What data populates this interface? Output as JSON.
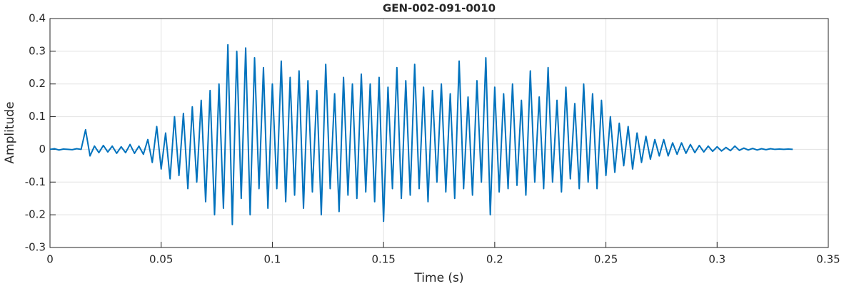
{
  "chart_data": {
    "type": "line",
    "title": "GEN-002-091-0010",
    "xlabel": "Time (s)",
    "ylabel": "Amplitude",
    "x": [
      0,
      0.002,
      0.004,
      0.006,
      0.008,
      0.01,
      0.012,
      0.014,
      0.016,
      0.018,
      0.02,
      0.022,
      0.024,
      0.026,
      0.028,
      0.03,
      0.032,
      0.034,
      0.036,
      0.038,
      0.04,
      0.042,
      0.044,
      0.046,
      0.048,
      0.05,
      0.052,
      0.054,
      0.056,
      0.058,
      0.06,
      0.062,
      0.064,
      0.066,
      0.068,
      0.07,
      0.072,
      0.074,
      0.076,
      0.078,
      0.08,
      0.082,
      0.084,
      0.086,
      0.088,
      0.09,
      0.092,
      0.094,
      0.096,
      0.098,
      0.1,
      0.102,
      0.104,
      0.106,
      0.108,
      0.11,
      0.112,
      0.114,
      0.116,
      0.118,
      0.12,
      0.122,
      0.124,
      0.126,
      0.128,
      0.13,
      0.132,
      0.134,
      0.136,
      0.138,
      0.14,
      0.142,
      0.144,
      0.146,
      0.148,
      0.15,
      0.152,
      0.154,
      0.156,
      0.158,
      0.16,
      0.162,
      0.164,
      0.166,
      0.168,
      0.17,
      0.172,
      0.174,
      0.176,
      0.178,
      0.18,
      0.182,
      0.184,
      0.186,
      0.188,
      0.19,
      0.192,
      0.194,
      0.196,
      0.198,
      0.2,
      0.202,
      0.204,
      0.206,
      0.208,
      0.21,
      0.212,
      0.214,
      0.216,
      0.218,
      0.22,
      0.222,
      0.224,
      0.226,
      0.228,
      0.23,
      0.232,
      0.234,
      0.236,
      0.238,
      0.24,
      0.242,
      0.244,
      0.246,
      0.248,
      0.25,
      0.252,
      0.254,
      0.256,
      0.258,
      0.26,
      0.262,
      0.264,
      0.266,
      0.268,
      0.27,
      0.272,
      0.274,
      0.276,
      0.278,
      0.28,
      0.282,
      0.284,
      0.286,
      0.288,
      0.29,
      0.292,
      0.294,
      0.296,
      0.298,
      0.3,
      0.302,
      0.304,
      0.306,
      0.308,
      0.31,
      0.312,
      0.314,
      0.316,
      0.318,
      0.32,
      0.322,
      0.324,
      0.326,
      0.328,
      0.33,
      0.332,
      0.334
    ],
    "series": [
      {
        "color": "#0072bd",
        "values": [
          0,
          0.002,
          -0.002,
          0.001,
          0,
          -0.001,
          0.002,
          0,
          0.06,
          -0.02,
          0.01,
          -0.01,
          0.012,
          -0.008,
          0.01,
          -0.012,
          0.008,
          -0.01,
          0.015,
          -0.012,
          0.01,
          -0.015,
          0.03,
          -0.04,
          0.07,
          -0.06,
          0.05,
          -0.09,
          0.1,
          -0.08,
          0.11,
          -0.12,
          0.13,
          -0.1,
          0.15,
          -0.16,
          0.18,
          -0.2,
          0.2,
          -0.18,
          0.32,
          -0.23,
          0.3,
          -0.15,
          0.31,
          -0.2,
          0.28,
          -0.12,
          0.25,
          -0.18,
          0.2,
          -0.12,
          0.27,
          -0.16,
          0.22,
          -0.14,
          0.24,
          -0.18,
          0.21,
          -0.13,
          0.18,
          -0.2,
          0.26,
          -0.12,
          0.17,
          -0.19,
          0.22,
          -0.14,
          0.2,
          -0.15,
          0.23,
          -0.13,
          0.2,
          -0.16,
          0.22,
          -0.22,
          0.19,
          -0.12,
          0.25,
          -0.15,
          0.21,
          -0.14,
          0.26,
          -0.12,
          0.19,
          -0.16,
          0.18,
          -0.1,
          0.2,
          -0.13,
          0.17,
          -0.15,
          0.27,
          -0.12,
          0.16,
          -0.14,
          0.21,
          -0.1,
          0.28,
          -0.2,
          0.19,
          -0.13,
          0.17,
          -0.12,
          0.2,
          -0.11,
          0.15,
          -0.14,
          0.24,
          -0.1,
          0.16,
          -0.12,
          0.25,
          -0.1,
          0.15,
          -0.13,
          0.19,
          -0.09,
          0.14,
          -0.12,
          0.2,
          -0.1,
          0.17,
          -0.12,
          0.15,
          -0.08,
          0.1,
          -0.07,
          0.08,
          -0.05,
          0.07,
          -0.06,
          0.05,
          -0.04,
          0.04,
          -0.03,
          0.03,
          -0.02,
          0.03,
          -0.02,
          0.02,
          -0.015,
          0.02,
          -0.012,
          0.015,
          -0.01,
          0.012,
          -0.008,
          0.01,
          -0.006,
          0.008,
          -0.005,
          0.006,
          -0.004,
          0.01,
          -0.003,
          0.004,
          -0.002,
          0.003,
          -0.002,
          0.002,
          -0.001,
          0.002,
          0,
          0.001,
          0,
          0.001,
          0
        ]
      }
    ],
    "xlim": [
      0,
      0.35
    ],
    "xticks": [
      0,
      0.05,
      0.1,
      0.15,
      0.2,
      0.25,
      0.3,
      0.35
    ],
    "ylim": [
      -0.3,
      0.4
    ],
    "yticks": [
      -0.3,
      -0.2,
      -0.1,
      0,
      0.1,
      0.2,
      0.3,
      0.4
    ],
    "grid": true
  }
}
